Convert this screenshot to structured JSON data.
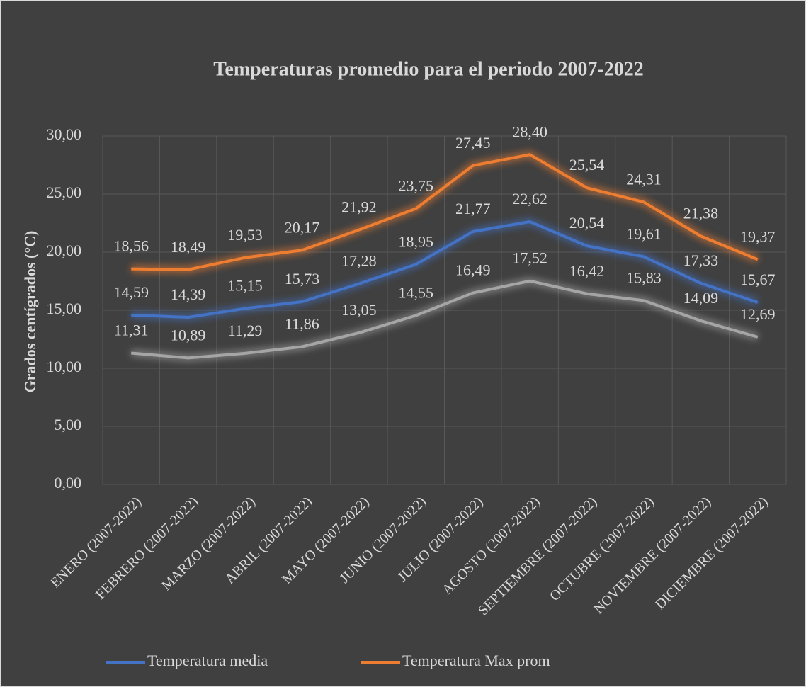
{
  "chart_data": {
    "type": "line",
    "title": "Temperaturas promedio para el periodo 2007-2022",
    "y_label": "Grados centígrados (°C)",
    "categories": [
      "ENERO (2007-2022)",
      "FEBRERO (2007-2022)",
      "MARZO (2007-2022)",
      "ABRIL (2007-2022)",
      "MAYO (2007-2022)",
      "JUNIO (2007-2022)",
      "JULIO (2007-2022)",
      "AGOSTO (2007-2022)",
      "SEPTIEMBRE (2007-2022)",
      "OCTUBRE (2007-2022)",
      "NOVIEMBRE (2007-2022)",
      "DICIEMBRE (2007-2022)"
    ],
    "series": [
      {
        "name": "Temperatura media",
        "color": "#4472c4",
        "values": [
          14.59,
          14.39,
          15.15,
          15.73,
          17.28,
          18.95,
          21.77,
          22.62,
          20.54,
          19.61,
          17.33,
          15.67
        ],
        "value_labels": [
          "14,59",
          "14,39",
          "15,15",
          "15,73",
          "17,28",
          "18,95",
          "21,77",
          "22,62",
          "20,54",
          "19,61",
          "17,33",
          "15,67"
        ]
      },
      {
        "name": "Temperatura Max prom",
        "color": "#ed7d31",
        "values": [
          18.56,
          18.49,
          19.53,
          20.17,
          21.92,
          23.75,
          27.45,
          28.4,
          25.54,
          24.31,
          21.38,
          19.37
        ],
        "value_labels": [
          "18,56",
          "18,49",
          "19,53",
          "20,17",
          "21,92",
          "23,75",
          "27,45",
          "28,40",
          "25,54",
          "24,31",
          "21,38",
          "19,37"
        ]
      },
      {
        "color": "#a5a5a5",
        "values": [
          11.31,
          10.89,
          11.29,
          11.86,
          13.05,
          14.55,
          16.49,
          17.52,
          16.42,
          15.83,
          14.09,
          12.69
        ],
        "value_labels": [
          "11,31",
          "10,89",
          "11,29",
          "11,86",
          "13,05",
          "14,55",
          "16,49",
          "17,52",
          "16,42",
          "15,83",
          "14,09",
          "12,69"
        ]
      }
    ],
    "ylim": [
      0,
      30
    ],
    "yticks": [
      {
        "value": 0,
        "label": "0,00"
      },
      {
        "value": 5,
        "label": "5,00"
      },
      {
        "value": 10,
        "label": "10,00"
      },
      {
        "value": 15,
        "label": "15,00"
      },
      {
        "value": 20,
        "label": "20,00"
      },
      {
        "value": 25,
        "label": "25,00"
      },
      {
        "value": 30,
        "label": "30,00"
      }
    ],
    "grid": true,
    "legend": "bottom"
  }
}
